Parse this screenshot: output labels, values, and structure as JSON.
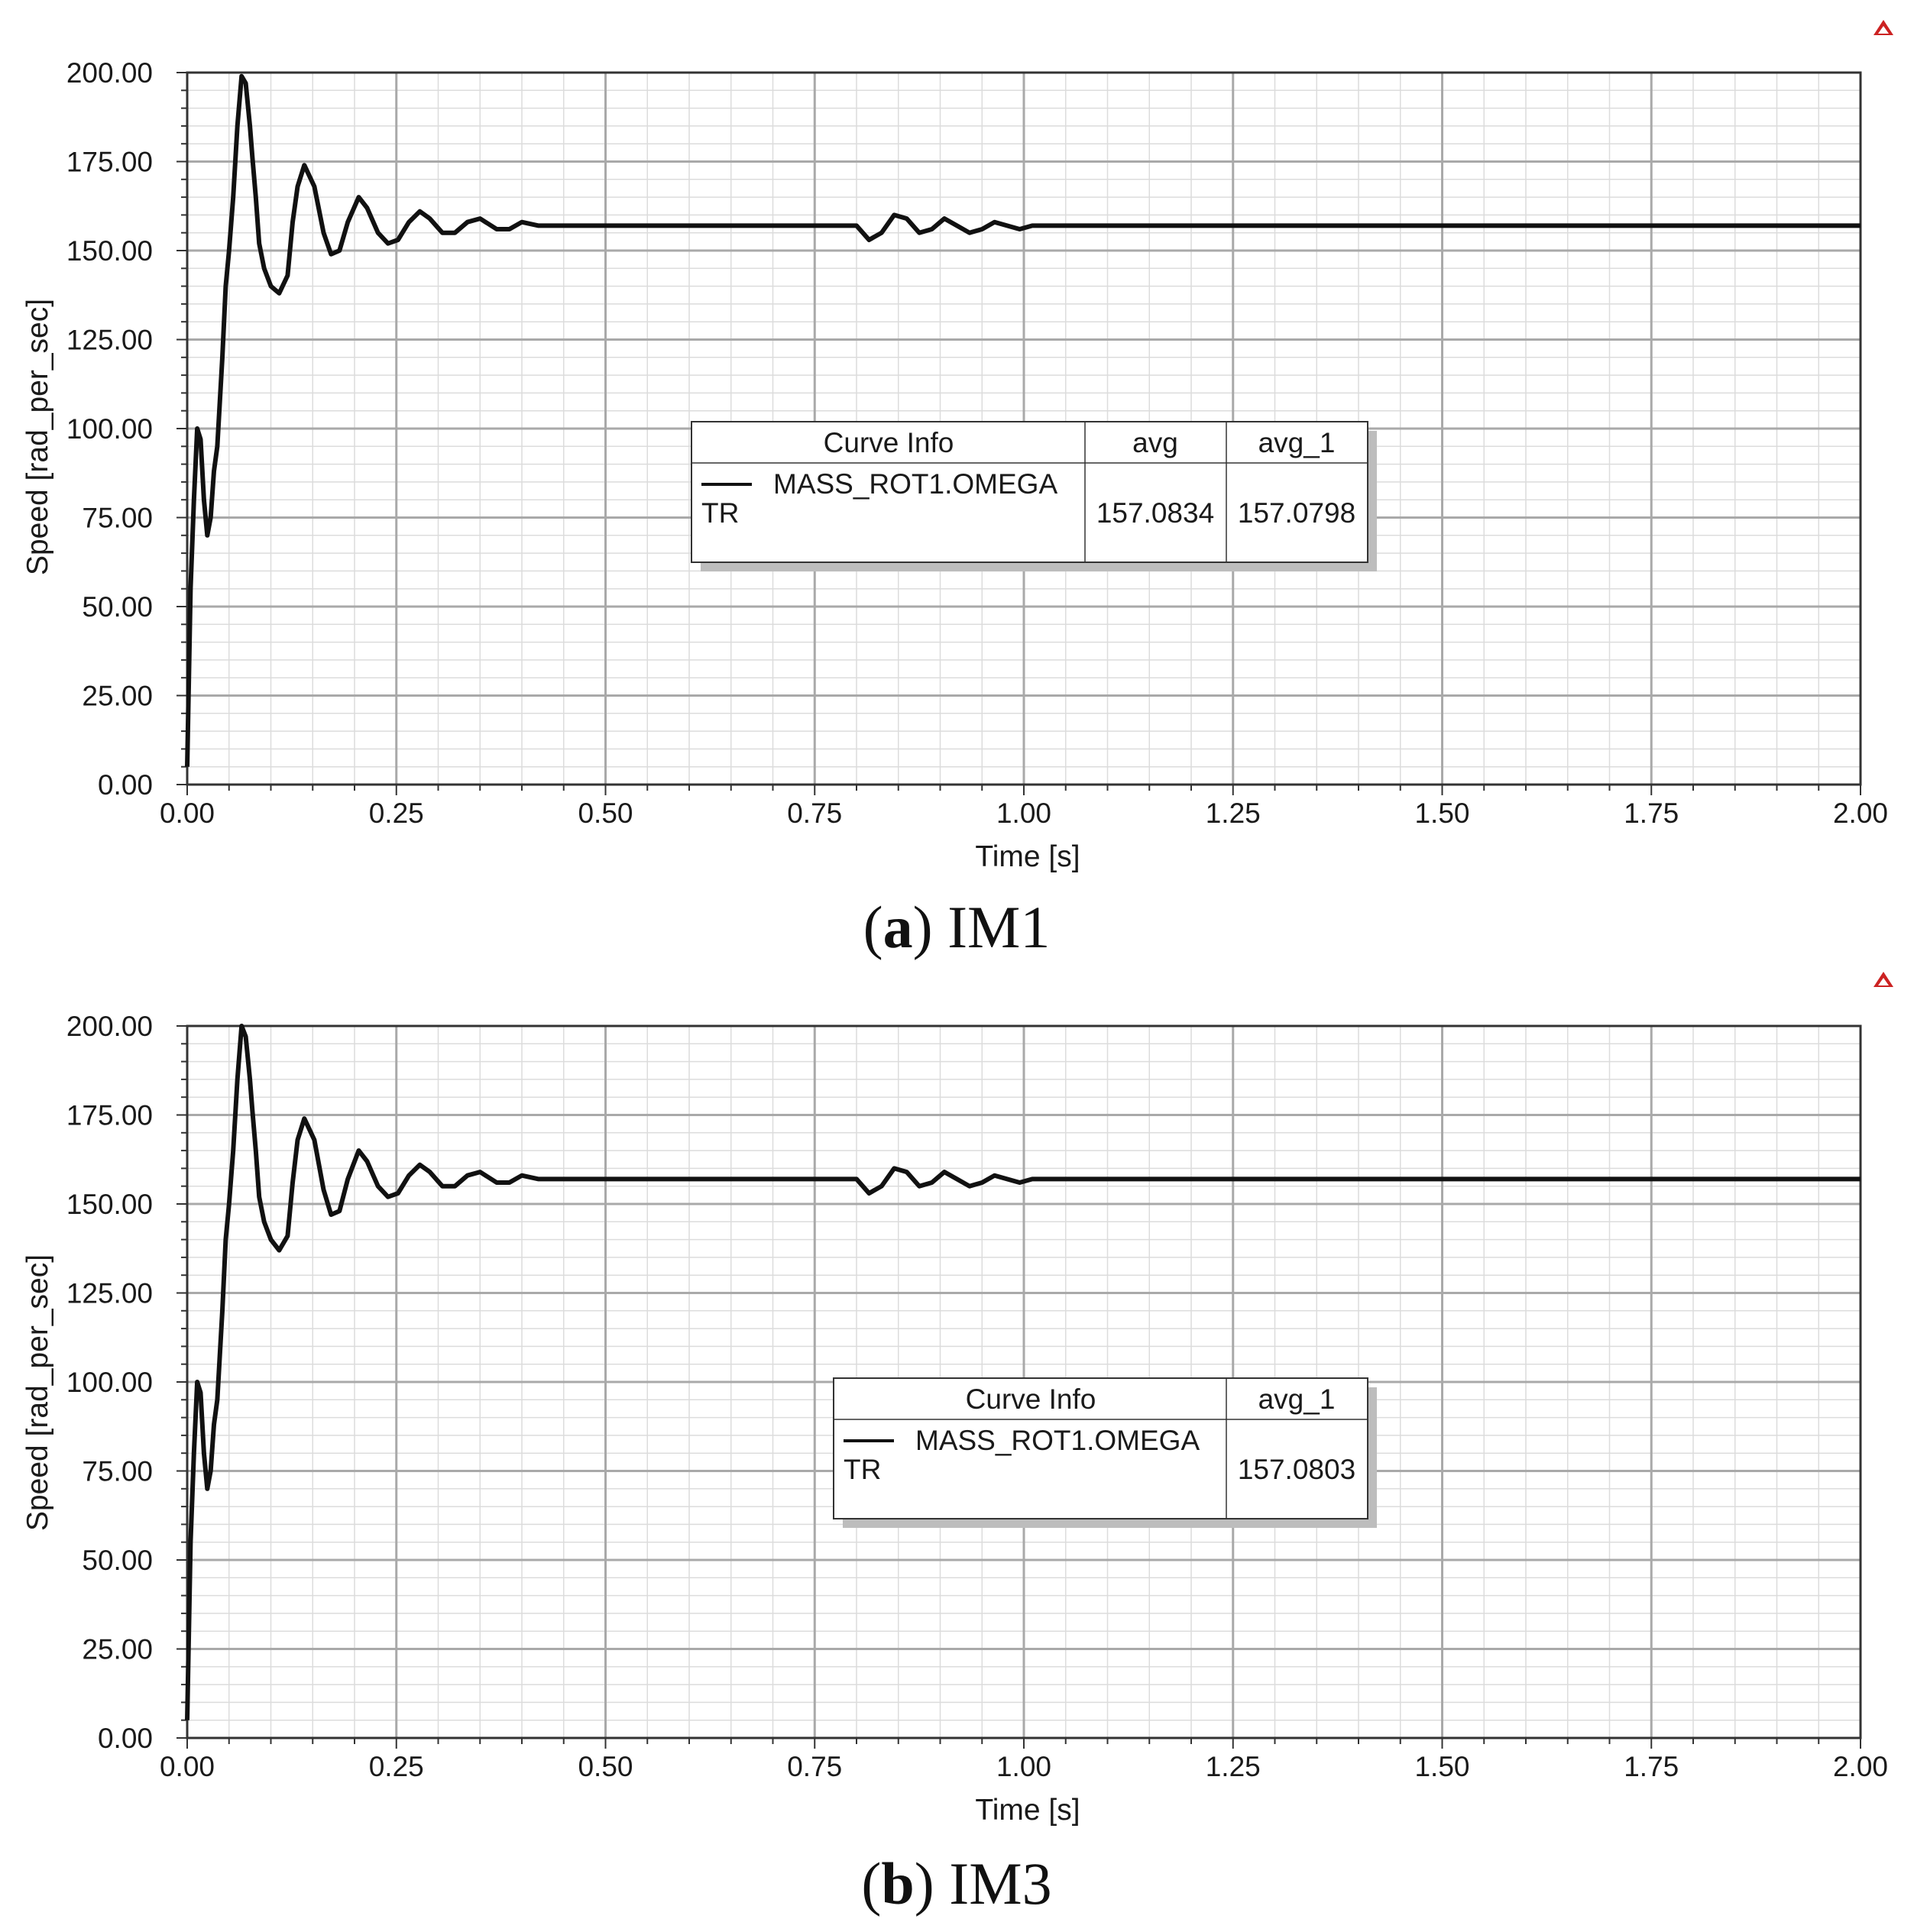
{
  "colors": {
    "curve": "#111111",
    "major_grid": "#a9a9a9",
    "minor_grid": "#dcdcdc",
    "axis": "#333333",
    "legend_shadow": "#bdbdbd",
    "marker": "#cc2222"
  },
  "captions": [
    {
      "letter": "a",
      "open": "(",
      "close": ")",
      "name": "IM1"
    },
    {
      "letter": "b",
      "open": "(",
      "close": ")",
      "name": "IM3"
    }
  ],
  "chart_data": [
    {
      "type": "line",
      "xlabel": "Time [s]",
      "ylabel": "Speed [rad_per_sec]",
      "xlim": [
        0,
        2
      ],
      "ylim": [
        0,
        200
      ],
      "x_ticks": [
        "0.00",
        "0.25",
        "0.50",
        "0.75",
        "1.00",
        "1.25",
        "1.50",
        "1.75",
        "2.00"
      ],
      "y_ticks": [
        "0.00",
        "25.00",
        "50.00",
        "75.00",
        "100.00",
        "125.00",
        "150.00",
        "175.00",
        "200.00"
      ],
      "grid": true,
      "legend": {
        "header": [
          "Curve Info",
          "avg",
          "avg_1"
        ],
        "rows": [
          {
            "name": "MASS_ROT1.OMEGA",
            "sub": "TR",
            "values": [
              "157.0834",
              "157.0798"
            ]
          }
        ]
      },
      "series": [
        {
          "name": "MASS_ROT1.OMEGA",
          "x": [
            0,
            0.004,
            0.008,
            0.012,
            0.016,
            0.02,
            0.024,
            0.028,
            0.032,
            0.036,
            0.042,
            0.046,
            0.05,
            0.055,
            0.06,
            0.065,
            0.07,
            0.075,
            0.078,
            0.082,
            0.086,
            0.092,
            0.1,
            0.11,
            0.12,
            0.126,
            0.132,
            0.14,
            0.152,
            0.163,
            0.172,
            0.182,
            0.192,
            0.205,
            0.215,
            0.228,
            0.24,
            0.252,
            0.265,
            0.278,
            0.29,
            0.305,
            0.32,
            0.335,
            0.35,
            0.37,
            0.385,
            0.4,
            0.42,
            0.44,
            0.46,
            0.48,
            0.5,
            0.55,
            0.6,
            0.65,
            0.7,
            0.75,
            0.78,
            0.8,
            0.815,
            0.83,
            0.845,
            0.86,
            0.875,
            0.89,
            0.905,
            0.92,
            0.935,
            0.95,
            0.965,
            0.98,
            0.995,
            1.01,
            1.03,
            1.06,
            1.1,
            1.2,
            1.3,
            1.4,
            1.5,
            1.6,
            1.7,
            1.8,
            1.9,
            2.0
          ],
          "values": [
            5,
            55,
            80,
            100,
            97,
            80,
            70,
            75,
            88,
            95,
            120,
            140,
            150,
            165,
            185,
            199,
            197,
            185,
            176,
            165,
            152,
            145,
            140,
            138,
            143,
            158,
            168,
            174,
            168,
            155,
            149,
            150,
            158,
            165,
            162,
            155,
            152,
            153,
            158,
            161,
            159,
            155,
            155,
            158,
            159,
            156,
            156,
            158,
            157,
            157,
            157,
            157,
            157,
            157,
            157,
            157,
            157,
            157,
            157,
            157,
            153,
            155,
            160,
            159,
            155,
            156,
            159,
            157,
            155,
            156,
            158,
            157,
            156,
            157,
            157,
            157,
            157,
            157,
            157,
            157,
            157,
            157,
            157,
            157,
            157,
            157
          ]
        }
      ]
    },
    {
      "type": "line",
      "xlabel": "Time [s]",
      "ylabel": "Speed [rad_per_sec]",
      "xlim": [
        0,
        2
      ],
      "ylim": [
        0,
        200
      ],
      "x_ticks": [
        "0.00",
        "0.25",
        "0.50",
        "0.75",
        "1.00",
        "1.25",
        "1.50",
        "1.75",
        "2.00"
      ],
      "y_ticks": [
        "0.00",
        "25.00",
        "50.00",
        "75.00",
        "100.00",
        "125.00",
        "150.00",
        "175.00",
        "200.00"
      ],
      "grid": true,
      "legend": {
        "header": [
          "Curve Info",
          "avg_1"
        ],
        "rows": [
          {
            "name": "MASS_ROT1.OMEGA",
            "sub": "TR",
            "values": [
              "157.0803"
            ]
          }
        ]
      },
      "series": [
        {
          "name": "MASS_ROT1.OMEGA",
          "x": [
            0,
            0.004,
            0.008,
            0.012,
            0.016,
            0.02,
            0.024,
            0.028,
            0.032,
            0.036,
            0.042,
            0.046,
            0.05,
            0.055,
            0.06,
            0.065,
            0.07,
            0.075,
            0.078,
            0.082,
            0.086,
            0.092,
            0.1,
            0.11,
            0.12,
            0.126,
            0.132,
            0.14,
            0.152,
            0.163,
            0.172,
            0.182,
            0.192,
            0.205,
            0.215,
            0.228,
            0.24,
            0.252,
            0.265,
            0.278,
            0.29,
            0.305,
            0.32,
            0.335,
            0.35,
            0.37,
            0.385,
            0.4,
            0.42,
            0.44,
            0.46,
            0.48,
            0.5,
            0.55,
            0.6,
            0.65,
            0.7,
            0.75,
            0.78,
            0.8,
            0.815,
            0.83,
            0.845,
            0.86,
            0.875,
            0.89,
            0.905,
            0.92,
            0.935,
            0.95,
            0.965,
            0.98,
            0.995,
            1.01,
            1.03,
            1.06,
            1.1,
            1.2,
            1.3,
            1.4,
            1.5,
            1.6,
            1.7,
            1.8,
            1.9,
            2.0
          ],
          "values": [
            5,
            55,
            80,
            100,
            97,
            80,
            70,
            75,
            88,
            95,
            120,
            140,
            150,
            165,
            185,
            200,
            197,
            185,
            176,
            165,
            152,
            145,
            140,
            137,
            141,
            156,
            168,
            174,
            168,
            154,
            147,
            148,
            157,
            165,
            162,
            155,
            152,
            153,
            158,
            161,
            159,
            155,
            155,
            158,
            159,
            156,
            156,
            158,
            157,
            157,
            157,
            157,
            157,
            157,
            157,
            157,
            157,
            157,
            157,
            157,
            153,
            155,
            160,
            159,
            155,
            156,
            159,
            157,
            155,
            156,
            158,
            157,
            156,
            157,
            157,
            157,
            157,
            157,
            157,
            157,
            157,
            157,
            157,
            157,
            157,
            157
          ]
        }
      ]
    }
  ]
}
